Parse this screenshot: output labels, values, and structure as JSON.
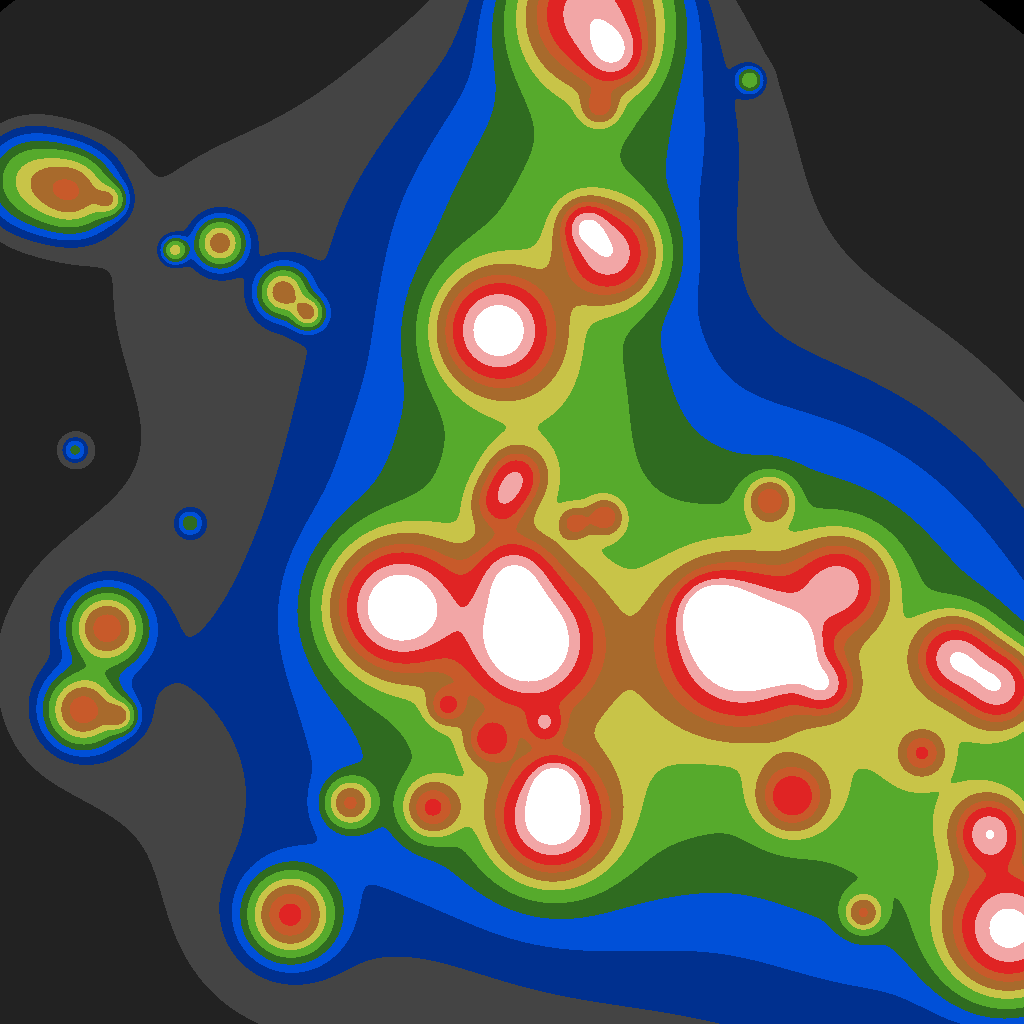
{
  "chart_data": {
    "type": "contour",
    "tick_labels": false,
    "xlim": [
      0,
      1024
    ],
    "ylim": [
      1024,
      0
    ],
    "levels": [
      0,
      0.3,
      1.0,
      1.6,
      2.2,
      3.0,
      4.0,
      5.5,
      7.0,
      9.0,
      11.0,
      14.0,
      17.0,
      1000
    ],
    "colors": [
      "#000000",
      "#222222",
      "#444444",
      "#00308f",
      "#0050d8",
      "#2f6b20",
      "#56aa2c",
      "#c8c448",
      "#a86a2c",
      "#c85a2a",
      "#e02424",
      "#f2a6a6",
      "#ffffff"
    ],
    "peaks": [
      {
        "x": 512,
        "y": 700,
        "height": 0.6,
        "spread": 600
      },
      {
        "x": 650,
        "y": 650,
        "height": 1.2,
        "spread": 300
      },
      {
        "x": 560,
        "y": 150,
        "height": 1.0,
        "spread": 150
      },
      {
        "x": 200,
        "y": 250,
        "height": 0.6,
        "spread": 150
      },
      {
        "x": 100,
        "y": 670,
        "height": 0.8,
        "spread": 100
      },
      {
        "x": 290,
        "y": 910,
        "height": 0.8,
        "spread": 80
      },
      {
        "x": 900,
        "y": 900,
        "height": 0.8,
        "spread": 200
      },
      {
        "x": 500,
        "y": 650,
        "height": 3.0,
        "spread": 130
      },
      {
        "x": 800,
        "y": 640,
        "height": 3.0,
        "spread": 140
      },
      {
        "x": 560,
        "y": 780,
        "height": 2.0,
        "spread": 100
      },
      {
        "x": 960,
        "y": 800,
        "height": 2.5,
        "spread": 110
      },
      {
        "x": 530,
        "y": 250,
        "height": 2.0,
        "spread": 90
      },
      {
        "x": 600,
        "y": 100,
        "height": 2.0,
        "spread": 80
      },
      {
        "x": 500,
        "y": 450,
        "height": 1.5,
        "spread": 100
      },
      {
        "x": 560,
        "y": 380,
        "height": 1.5,
        "spread": 70
      },
      {
        "x": 398,
        "y": 607,
        "height": 18,
        "spread": 40
      },
      {
        "x": 528,
        "y": 640,
        "height": 18,
        "spread": 40
      },
      {
        "x": 513,
        "y": 575,
        "height": 9,
        "spread": 25
      },
      {
        "x": 552,
        "y": 820,
        "height": 16,
        "spread": 35
      },
      {
        "x": 555,
        "y": 785,
        "height": 10,
        "spread": 15
      },
      {
        "x": 517,
        "y": 476,
        "height": 8,
        "spread": 18
      },
      {
        "x": 500,
        "y": 503,
        "height": 7,
        "spread": 18
      },
      {
        "x": 605,
        "y": 517,
        "height": 6,
        "spread": 12
      },
      {
        "x": 575,
        "y": 523,
        "height": 5,
        "spread": 10
      },
      {
        "x": 447,
        "y": 706,
        "height": 6,
        "spread": 12
      },
      {
        "x": 490,
        "y": 740,
        "height": 7,
        "spread": 15
      },
      {
        "x": 545,
        "y": 724,
        "height": 6,
        "spread": 12
      },
      {
        "x": 432,
        "y": 808,
        "height": 8,
        "spread": 18
      },
      {
        "x": 350,
        "y": 803,
        "height": 7,
        "spread": 15
      },
      {
        "x": 290,
        "y": 915,
        "height": 10,
        "spread": 25
      },
      {
        "x": 792,
        "y": 797,
        "height": 9,
        "spread": 22
      },
      {
        "x": 863,
        "y": 913,
        "height": 6,
        "spread": 12
      },
      {
        "x": 922,
        "y": 753,
        "height": 6,
        "spread": 14
      },
      {
        "x": 742,
        "y": 643,
        "height": 20,
        "spread": 45
      },
      {
        "x": 712,
        "y": 613,
        "height": 12,
        "spread": 20
      },
      {
        "x": 790,
        "y": 650,
        "height": 10,
        "spread": 20
      },
      {
        "x": 825,
        "y": 685,
        "height": 9,
        "spread": 18
      },
      {
        "x": 840,
        "y": 585,
        "height": 11,
        "spread": 30
      },
      {
        "x": 770,
        "y": 500,
        "height": 7,
        "spread": 15
      },
      {
        "x": 955,
        "y": 657,
        "height": 12,
        "spread": 25
      },
      {
        "x": 1000,
        "y": 687,
        "height": 12,
        "spread": 25
      },
      {
        "x": 1010,
        "y": 930,
        "height": 16,
        "spread": 40
      },
      {
        "x": 990,
        "y": 833,
        "height": 12,
        "spread": 22
      },
      {
        "x": 497,
        "y": 330,
        "height": 16,
        "spread": 35
      },
      {
        "x": 610,
        "y": 253,
        "height": 13,
        "spread": 30
      },
      {
        "x": 585,
        "y": 225,
        "height": 8,
        "spread": 15
      },
      {
        "x": 600,
        "y": 107,
        "height": 5,
        "spread": 12
      },
      {
        "x": 590,
        "y": 10,
        "height": 14,
        "spread": 45
      },
      {
        "x": 615,
        "y": 55,
        "height": 8,
        "spread": 20
      },
      {
        "x": 750,
        "y": 80,
        "height": 4,
        "spread": 8
      },
      {
        "x": 75,
        "y": 192,
        "height": 7,
        "spread": 25
      },
      {
        "x": 30,
        "y": 180,
        "height": 5,
        "spread": 30
      },
      {
        "x": 220,
        "y": 243,
        "height": 7,
        "spread": 15
      },
      {
        "x": 175,
        "y": 250,
        "height": 5,
        "spread": 8
      },
      {
        "x": 283,
        "y": 292,
        "height": 7,
        "spread": 15
      },
      {
        "x": 308,
        "y": 313,
        "height": 6,
        "spread": 10
      },
      {
        "x": 110,
        "y": 200,
        "height": 4,
        "spread": 10
      },
      {
        "x": 107,
        "y": 628,
        "height": 9,
        "spread": 22
      },
      {
        "x": 83,
        "y": 710,
        "height": 9,
        "spread": 22
      },
      {
        "x": 120,
        "y": 716,
        "height": 5,
        "spread": 10
      },
      {
        "x": 75,
        "y": 450,
        "height": 2.5,
        "spread": 8
      },
      {
        "x": 190,
        "y": 523,
        "height": 2.5,
        "spread": 8
      }
    ]
  }
}
